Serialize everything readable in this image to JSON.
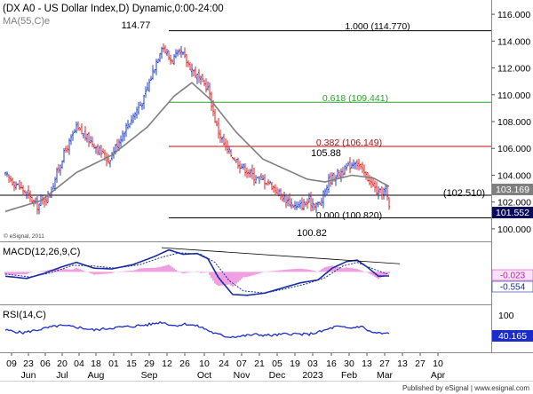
{
  "header": {
    "title": "(DX A0 - US Dollar Index,D) Dynamic,0:00-24:00",
    "ma_label": "MA(55,C)e",
    "watermark": "© eSignal, 2011",
    "published": "Published by eSignal | www.esignal.com"
  },
  "colors": {
    "up_candle": "#1f3fd0",
    "down_candle": "#e02020",
    "ma": "#7f7f7f",
    "fib_100": "#000000",
    "fib_618": "#2ea02e",
    "fib_382": "#b01010",
    "macd": "#1a2d9e",
    "macd_hist": "#e040c0",
    "rsi": "#1a2dcc",
    "trendline": "#000000"
  },
  "chart_data": [
    {
      "type": "candlestick",
      "name": "price",
      "y_ticks": [
        100.0,
        102.0,
        104.0,
        106.0,
        108.0,
        110.0,
        112.0,
        114.0,
        116.0
      ],
      "ylim": [
        99.2,
        116.8
      ],
      "x_ticks": [
        "09",
        "23",
        "06",
        "20",
        "04",
        "18",
        "01",
        "15",
        "29",
        "12",
        "26",
        "10",
        "24",
        "07",
        "21",
        "05",
        "19",
        "03",
        "16",
        "30",
        "13",
        "27",
        "13",
        "27",
        "10"
      ],
      "months": [
        "Jun",
        "Jul",
        "Aug",
        "Sep",
        "Oct",
        "Nov",
        "Dec",
        "2023",
        "Feb",
        "Mar",
        "Apr"
      ],
      "month_tick_index": [
        1,
        3,
        5,
        8,
        11,
        13,
        15,
        17,
        19,
        21,
        24
      ],
      "close_anchors": [
        {
          "i": 0,
          "v": 104.0
        },
        {
          "i": 10,
          "v": 102.9
        },
        {
          "i": 18,
          "v": 101.7
        },
        {
          "i": 25,
          "v": 102.6
        },
        {
          "i": 32,
          "v": 105.3
        },
        {
          "i": 40,
          "v": 107.5
        },
        {
          "i": 50,
          "v": 106.3
        },
        {
          "i": 58,
          "v": 105.1
        },
        {
          "i": 68,
          "v": 107.6
        },
        {
          "i": 78,
          "v": 109.7
        },
        {
          "i": 88,
          "v": 113.7
        },
        {
          "i": 93,
          "v": 112.6
        },
        {
          "i": 99,
          "v": 113.1
        },
        {
          "i": 104,
          "v": 112.1
        },
        {
          "i": 109,
          "v": 111.2
        },
        {
          "i": 114,
          "v": 110.5
        },
        {
          "i": 119,
          "v": 107.6
        },
        {
          "i": 124,
          "v": 106.0
        },
        {
          "i": 132,
          "v": 104.8
        },
        {
          "i": 140,
          "v": 103.9
        },
        {
          "i": 148,
          "v": 103.5
        },
        {
          "i": 156,
          "v": 102.4
        },
        {
          "i": 164,
          "v": 101.6
        },
        {
          "i": 171,
          "v": 102.0
        },
        {
          "i": 177,
          "v": 101.8
        },
        {
          "i": 182,
          "v": 103.6
        },
        {
          "i": 187,
          "v": 104.1
        },
        {
          "i": 192,
          "v": 104.5
        },
        {
          "i": 197,
          "v": 105.1
        },
        {
          "i": 201,
          "v": 104.3
        },
        {
          "i": 205,
          "v": 103.6
        },
        {
          "i": 210,
          "v": 102.6
        },
        {
          "i": 214,
          "v": 102.9
        },
        {
          "i": 216,
          "v": 101.552
        }
      ],
      "ma_anchors": [
        {
          "i": 0,
          "v": 101.3
        },
        {
          "i": 20,
          "v": 102.1
        },
        {
          "i": 40,
          "v": 104.2
        },
        {
          "i": 60,
          "v": 105.5
        },
        {
          "i": 80,
          "v": 107.6
        },
        {
          "i": 95,
          "v": 109.9
        },
        {
          "i": 105,
          "v": 110.9
        },
        {
          "i": 115,
          "v": 109.7
        },
        {
          "i": 130,
          "v": 107.2
        },
        {
          "i": 145,
          "v": 105.2
        },
        {
          "i": 160,
          "v": 104.3
        },
        {
          "i": 170,
          "v": 103.7
        },
        {
          "i": 180,
          "v": 103.5
        },
        {
          "i": 195,
          "v": 104.0
        },
        {
          "i": 207,
          "v": 103.8
        },
        {
          "i": 216,
          "v": 103.169
        }
      ],
      "annotations": {
        "high_label": "114.77",
        "high_value": 114.77,
        "feb_high_label": "105.88",
        "feb_high_value": 105.88,
        "low_label": "100.82",
        "low_value": 100.82,
        "level_label": "(102.510)",
        "level_value": 102.51,
        "last_ma": "103.169",
        "last_price": "101.552"
      },
      "fibonacci": [
        {
          "label": "1.000 (114.770)",
          "value": 114.77,
          "color_key": "fib_100"
        },
        {
          "label": "0.618 (109.441)",
          "value": 109.441,
          "color_key": "fib_618"
        },
        {
          "label": "0.382 (106.149)",
          "value": 106.149,
          "color_key": "fib_382"
        },
        {
          "label": "0.000 (100.820)",
          "value": 100.82,
          "color_key": "fib_100"
        }
      ]
    },
    {
      "type": "line",
      "name": "macd",
      "label": "MACD(12,26,9,C)",
      "last_values": [
        "-0.023",
        "-0.554"
      ],
      "ylim": [
        -4.2,
        3.8
      ],
      "macd_anchors": [
        {
          "i": 0,
          "v": -0.6
        },
        {
          "i": 12,
          "v": -0.9
        },
        {
          "i": 22,
          "v": -0.2
        },
        {
          "i": 32,
          "v": 0.7
        },
        {
          "i": 40,
          "v": 1.3
        },
        {
          "i": 50,
          "v": 0.5
        },
        {
          "i": 60,
          "v": 0.4
        },
        {
          "i": 72,
          "v": 1.0
        },
        {
          "i": 84,
          "v": 2.1
        },
        {
          "i": 92,
          "v": 3.0
        },
        {
          "i": 100,
          "v": 2.4
        },
        {
          "i": 108,
          "v": 2.5
        },
        {
          "i": 114,
          "v": 1.8
        },
        {
          "i": 120,
          "v": -0.8
        },
        {
          "i": 128,
          "v": -3.1
        },
        {
          "i": 136,
          "v": -3.2
        },
        {
          "i": 146,
          "v": -2.9
        },
        {
          "i": 156,
          "v": -2.2
        },
        {
          "i": 166,
          "v": -1.5
        },
        {
          "i": 176,
          "v": -1.1
        },
        {
          "i": 184,
          "v": 0.5
        },
        {
          "i": 192,
          "v": 1.4
        },
        {
          "i": 198,
          "v": 1.6
        },
        {
          "i": 204,
          "v": 0.6
        },
        {
          "i": 210,
          "v": -0.6
        },
        {
          "i": 216,
          "v": -0.554
        }
      ],
      "signal_anchors": [
        {
          "i": 0,
          "v": -0.3
        },
        {
          "i": 14,
          "v": -0.7
        },
        {
          "i": 26,
          "v": -0.1
        },
        {
          "i": 38,
          "v": 0.9
        },
        {
          "i": 50,
          "v": 0.8
        },
        {
          "i": 62,
          "v": 0.5
        },
        {
          "i": 76,
          "v": 1.0
        },
        {
          "i": 88,
          "v": 2.0
        },
        {
          "i": 98,
          "v": 2.6
        },
        {
          "i": 110,
          "v": 2.4
        },
        {
          "i": 118,
          "v": 1.3
        },
        {
          "i": 126,
          "v": -1.2
        },
        {
          "i": 134,
          "v": -2.6
        },
        {
          "i": 146,
          "v": -2.9
        },
        {
          "i": 158,
          "v": -2.3
        },
        {
          "i": 170,
          "v": -1.6
        },
        {
          "i": 180,
          "v": -0.8
        },
        {
          "i": 190,
          "v": 0.8
        },
        {
          "i": 198,
          "v": 1.3
        },
        {
          "i": 206,
          "v": 0.5
        },
        {
          "i": 216,
          "v": -0.4
        }
      ],
      "trendline": [
        {
          "i": 88,
          "v": 3.3
        },
        {
          "i": 222,
          "v": 1.1
        }
      ]
    },
    {
      "type": "line",
      "name": "rsi",
      "label": "RSI(14,C)",
      "last_value": "40.165",
      "y_ticks": [
        100
      ],
      "ylim": [
        0,
        100
      ],
      "rsi_anchors": [
        {
          "i": 0,
          "v": 48
        },
        {
          "i": 10,
          "v": 42
        },
        {
          "i": 20,
          "v": 50
        },
        {
          "i": 30,
          "v": 58
        },
        {
          "i": 40,
          "v": 55
        },
        {
          "i": 50,
          "v": 48
        },
        {
          "i": 60,
          "v": 53
        },
        {
          "i": 70,
          "v": 56
        },
        {
          "i": 80,
          "v": 60
        },
        {
          "i": 88,
          "v": 66
        },
        {
          "i": 95,
          "v": 58
        },
        {
          "i": 102,
          "v": 62
        },
        {
          "i": 110,
          "v": 55
        },
        {
          "i": 118,
          "v": 40
        },
        {
          "i": 125,
          "v": 33
        },
        {
          "i": 132,
          "v": 34
        },
        {
          "i": 140,
          "v": 38
        },
        {
          "i": 150,
          "v": 36
        },
        {
          "i": 160,
          "v": 40
        },
        {
          "i": 170,
          "v": 38
        },
        {
          "i": 178,
          "v": 45
        },
        {
          "i": 186,
          "v": 56
        },
        {
          "i": 194,
          "v": 52
        },
        {
          "i": 200,
          "v": 57
        },
        {
          "i": 206,
          "v": 43
        },
        {
          "i": 212,
          "v": 40
        },
        {
          "i": 216,
          "v": 40.165
        }
      ]
    }
  ]
}
